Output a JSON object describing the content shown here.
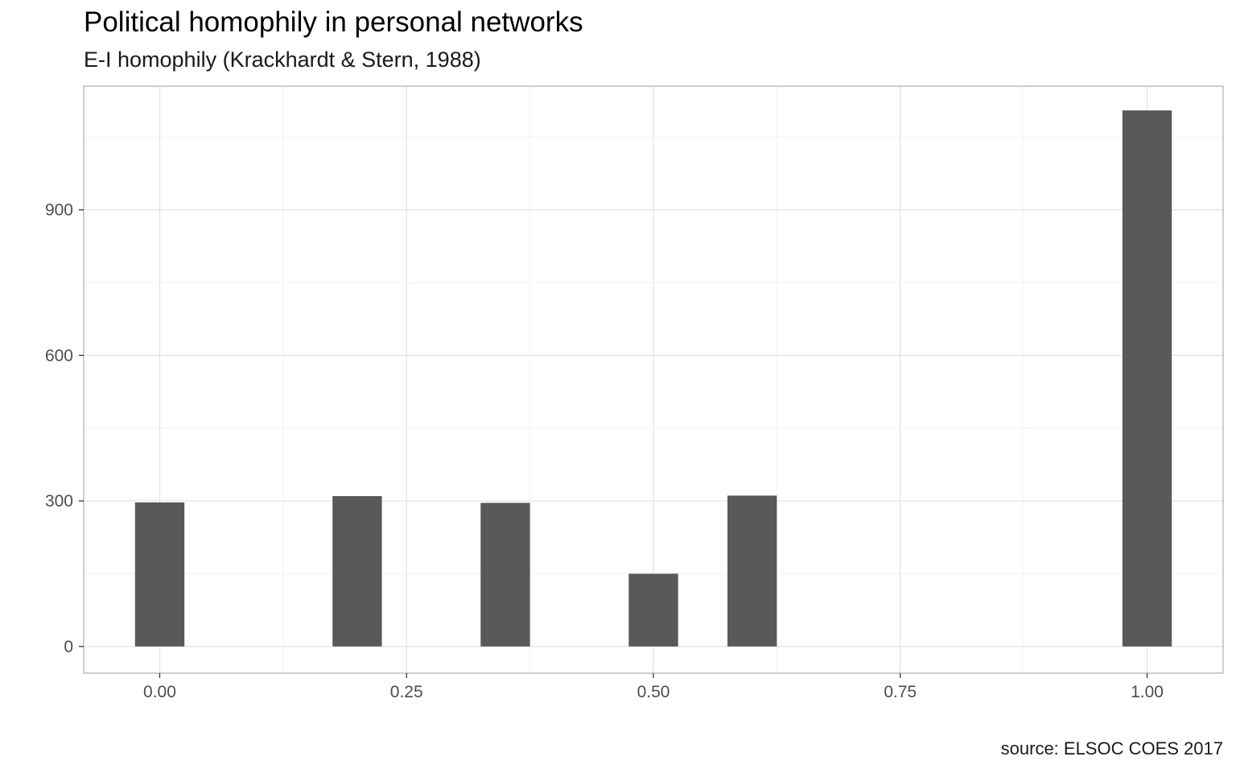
{
  "chart_data": {
    "type": "bar",
    "title": "Political homophily in personal networks",
    "subtitle": "E-I homophily (Krackhardt & Stern, 1988)",
    "caption": "source: ELSOC COES 2017",
    "xlabel": "",
    "ylabel": "",
    "x": [
      0.0,
      0.2,
      0.35,
      0.5,
      0.6,
      1.0
    ],
    "values": [
      297,
      310,
      296,
      150,
      311,
      1105
    ],
    "bar_width": 0.05,
    "xlim": [
      -0.077,
      1.077
    ],
    "ylim": [
      -55,
      1155
    ],
    "x_ticks": [
      0.0,
      0.25,
      0.5,
      0.75,
      1.0
    ],
    "x_tick_labels": [
      "0.00",
      "0.25",
      "0.50",
      "0.75",
      "1.00"
    ],
    "x_minor_ticks": [
      0.125,
      0.375,
      0.625,
      0.875
    ],
    "y_ticks": [
      0,
      300,
      600,
      900
    ],
    "y_tick_labels": [
      "0",
      "300",
      "600",
      "900"
    ],
    "y_minor_ticks": [
      150,
      450,
      750,
      1050
    ],
    "grid": true,
    "legend": "none",
    "colors": {
      "bar": "#595959",
      "grid_major": "#e3e3e3",
      "grid_minor": "#f2f2f2",
      "panel_border": "#b3b3b3",
      "tick_text": "#4d4d4d"
    }
  }
}
